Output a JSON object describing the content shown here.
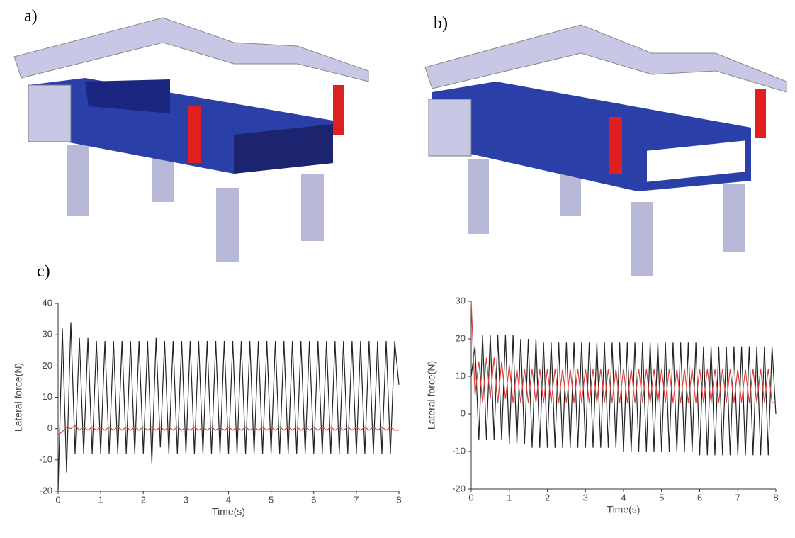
{
  "labels": {
    "a": "a)",
    "b": "b)",
    "c": "c)"
  },
  "chart_data": [
    {
      "type": "line",
      "xlabel": "Time(s)",
      "ylabel": "Lateral force(N)",
      "xlim": [
        0,
        8
      ],
      "xticks": [
        0,
        1,
        2,
        3,
        4,
        5,
        6,
        7,
        8
      ],
      "ylim": [
        -20,
        40
      ],
      "yticks": [
        -20,
        -10,
        0,
        10,
        20,
        30,
        40
      ],
      "x": [
        0,
        0.1,
        0.2,
        0.3,
        0.4,
        0.5,
        0.6,
        0.7,
        0.8,
        0.9,
        1,
        1.1,
        1.2,
        1.3,
        1.4,
        1.5,
        1.6,
        1.7,
        1.8,
        1.9,
        2,
        2.1,
        2.2,
        2.3,
        2.4,
        2.5,
        2.6,
        2.7,
        2.8,
        2.9,
        3,
        3.1,
        3.2,
        3.3,
        3.4,
        3.5,
        3.6,
        3.7,
        3.8,
        3.9,
        4,
        4.1,
        4.2,
        4.3,
        4.4,
        4.5,
        4.6,
        4.7,
        4.8,
        4.9,
        5,
        5.1,
        5.2,
        5.3,
        5.4,
        5.5,
        5.6,
        5.7,
        5.8,
        5.9,
        6,
        6.1,
        6.2,
        6.3,
        6.4,
        6.5,
        6.6,
        6.7,
        6.8,
        6.9,
        7,
        7.1,
        7.2,
        7.3,
        7.4,
        7.5,
        7.6,
        7.7,
        7.8,
        7.9,
        8
      ],
      "series": [
        {
          "color": "#222222",
          "values": [
            -20,
            32,
            -14,
            34,
            -8,
            29,
            -8,
            29,
            -8,
            28,
            -8,
            28,
            -8,
            28,
            -8,
            28,
            -8,
            28,
            -8,
            28,
            -8,
            28,
            -11,
            29,
            -6,
            28,
            -8,
            28,
            -8,
            28,
            -8,
            28,
            -8,
            28,
            -8,
            28,
            -8,
            28,
            -8,
            28,
            -8,
            28,
            -8,
            28,
            -8,
            28,
            -8,
            28,
            -8,
            28,
            -8,
            28,
            -8,
            28,
            -8,
            28,
            -8,
            28,
            -8,
            28,
            -8,
            28,
            -8,
            28,
            -8,
            28,
            -8,
            28,
            -8,
            28,
            -8,
            28,
            -8,
            28,
            -8,
            28,
            -8,
            28,
            -8,
            28,
            14
          ]
        },
        {
          "color": "#e0403a",
          "values": [
            -2,
            -1,
            0.5,
            0,
            1,
            -0.5,
            0.5,
            -0.5,
            0.5,
            -0.5,
            0.5,
            -0.5,
            0.5,
            -0.5,
            0.5,
            -0.5,
            0.5,
            -0.5,
            0.5,
            -0.5,
            0.5,
            -0.5,
            0.5,
            -0.5,
            0.5,
            -0.5,
            0.5,
            -0.5,
            0.5,
            -0.5,
            0.5,
            -0.5,
            0.5,
            -0.5,
            0.5,
            -0.5,
            0.5,
            -0.5,
            0.5,
            -0.5,
            0.5,
            -0.5,
            0.5,
            -0.5,
            0.5,
            -0.5,
            0.5,
            -0.5,
            0.5,
            -0.5,
            0.5,
            -0.5,
            0.5,
            -0.5,
            0.5,
            -0.5,
            0.5,
            -0.5,
            0.5,
            -0.5,
            0.5,
            -0.5,
            0.5,
            -0.5,
            0.5,
            -0.5,
            0.5,
            -0.5,
            0.5,
            -0.5,
            0.5,
            -0.5,
            0.5,
            -0.5,
            0.5,
            -0.5,
            0.5,
            -0.5,
            0.5,
            -0.5,
            -0.5
          ]
        }
      ]
    },
    {
      "type": "line",
      "xlabel": "Time(s)",
      "ylabel": "Lateral force(N)",
      "xlim": [
        0,
        8
      ],
      "xticks": [
        0,
        1,
        2,
        3,
        4,
        5,
        6,
        7,
        8
      ],
      "ylim": [
        -20,
        30
      ],
      "yticks": [
        -20,
        -10,
        0,
        10,
        20,
        30
      ],
      "x": [
        0,
        0.1,
        0.2,
        0.3,
        0.4,
        0.5,
        0.6,
        0.7,
        0.8,
        0.9,
        1,
        1.1,
        1.2,
        1.3,
        1.4,
        1.5,
        1.6,
        1.7,
        1.8,
        1.9,
        2,
        2.1,
        2.2,
        2.3,
        2.4,
        2.5,
        2.6,
        2.7,
        2.8,
        2.9,
        3,
        3.1,
        3.2,
        3.3,
        3.4,
        3.5,
        3.6,
        3.7,
        3.8,
        3.9,
        4,
        4.1,
        4.2,
        4.3,
        4.4,
        4.5,
        4.6,
        4.7,
        4.8,
        4.9,
        5,
        5.1,
        5.2,
        5.3,
        5.4,
        5.5,
        5.6,
        5.7,
        5.8,
        5.9,
        6,
        6.1,
        6.2,
        6.3,
        6.4,
        6.5,
        6.6,
        6.7,
        6.8,
        6.9,
        7,
        7.1,
        7.2,
        7.3,
        7.4,
        7.5,
        7.6,
        7.7,
        7.8,
        7.9,
        8
      ],
      "series": [
        {
          "color": "#222222",
          "values": [
            10,
            18,
            -7,
            21,
            -7,
            21,
            -7,
            21,
            -7,
            21,
            -8,
            21,
            -8,
            20,
            -8,
            20,
            -9,
            20,
            -9,
            19,
            -9,
            19,
            -9,
            19,
            -9,
            19,
            -9,
            19,
            -9,
            19,
            -9,
            19,
            -9,
            19,
            -9,
            19,
            -9,
            19,
            -9,
            19,
            -10,
            19,
            -10,
            19,
            -10,
            19,
            -10,
            19,
            -10,
            19,
            -10,
            19,
            -10,
            19,
            -10,
            19,
            -10,
            19,
            -10,
            19,
            -11,
            18,
            -11,
            18,
            -11,
            18,
            -11,
            18,
            -11,
            18,
            -11,
            18,
            -11,
            18,
            -11,
            18,
            -11,
            18,
            -11,
            18,
            0
          ]
        },
        {
          "color": "#e0403a",
          "values": [
            30,
            5,
            14,
            3,
            15,
            4,
            15,
            3,
            14,
            4,
            13,
            3,
            12,
            3,
            12,
            3,
            12,
            3,
            12,
            3,
            12,
            3,
            12,
            3,
            12,
            3,
            12,
            3,
            12,
            3,
            12,
            3,
            12,
            3,
            12,
            3,
            12,
            3,
            12,
            3,
            12,
            3,
            12,
            3,
            12,
            3,
            12,
            3,
            12,
            3,
            12,
            3,
            12,
            3,
            12,
            3,
            12,
            3,
            12,
            3,
            12,
            3,
            12,
            3,
            12,
            3,
            12,
            3,
            12,
            3,
            12,
            3,
            12,
            3,
            12,
            3,
            12,
            3,
            12,
            3,
            3
          ]
        }
      ]
    }
  ]
}
